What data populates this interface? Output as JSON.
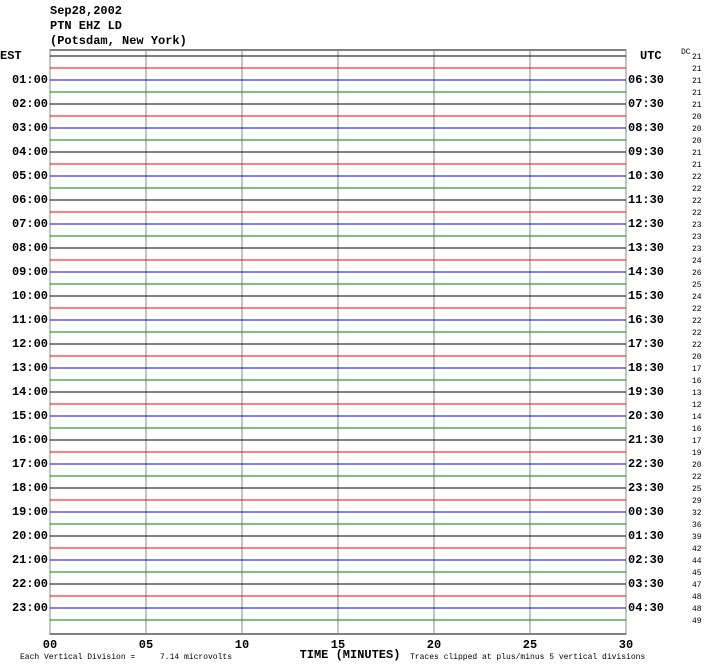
{
  "header": {
    "date": "Sep28,2002",
    "station": "PTN EHZ LD",
    "location": "(Potsdam, New York)"
  },
  "left_axis_label": "EST",
  "right_axis_label": "UTC",
  "dc_label": "DC",
  "trace_colors": [
    "#000000",
    "#ff0000",
    "#0000ff",
    "#008000"
  ],
  "xlim": [
    0,
    30
  ],
  "xticks": [
    {
      "value": 0,
      "label": "00"
    },
    {
      "value": 5,
      "label": "05"
    },
    10,
    15,
    20,
    25,
    30
  ],
  "x_axis_label": "TIME (MINUTES)",
  "footer": {
    "division": "Each Vertical Division =",
    "division_value": "7.14 microvolts",
    "clip_note": "Traces clipped at plus/minus 5 vertical divisions"
  },
  "rows": [
    {
      "est": null,
      "utc": null,
      "dc": 21
    },
    {
      "est": null,
      "utc": null,
      "dc": 21
    },
    {
      "est": "01:00",
      "utc": "06:30",
      "dc": 21
    },
    {
      "est": null,
      "utc": null,
      "dc": 21
    },
    {
      "est": "02:00",
      "utc": "07:30",
      "dc": 21
    },
    {
      "est": null,
      "utc": null,
      "dc": 20
    },
    {
      "est": "03:00",
      "utc": "08:30",
      "dc": 20
    },
    {
      "est": null,
      "utc": null,
      "dc": 20
    },
    {
      "est": "04:00",
      "utc": "09:30",
      "dc": 21
    },
    {
      "est": null,
      "utc": null,
      "dc": 21
    },
    {
      "est": "05:00",
      "utc": "10:30",
      "dc": 22
    },
    {
      "est": null,
      "utc": null,
      "dc": 22
    },
    {
      "est": "06:00",
      "utc": "11:30",
      "dc": 22
    },
    {
      "est": null,
      "utc": null,
      "dc": 22
    },
    {
      "est": "07:00",
      "utc": "12:30",
      "dc": 23
    },
    {
      "est": null,
      "utc": null,
      "dc": 23
    },
    {
      "est": "08:00",
      "utc": "13:30",
      "dc": 23
    },
    {
      "est": null,
      "utc": null,
      "dc": 24
    },
    {
      "est": "09:00",
      "utc": "14:30",
      "dc": 26
    },
    {
      "est": null,
      "utc": null,
      "dc": 25
    },
    {
      "est": "10:00",
      "utc": "15:30",
      "dc": 24
    },
    {
      "est": null,
      "utc": null,
      "dc": 22
    },
    {
      "est": "11:00",
      "utc": "16:30",
      "dc": 22
    },
    {
      "est": null,
      "utc": null,
      "dc": 22
    },
    {
      "est": "12:00",
      "utc": "17:30",
      "dc": 22
    },
    {
      "est": null,
      "utc": null,
      "dc": 20
    },
    {
      "est": "13:00",
      "utc": "18:30",
      "dc": 17
    },
    {
      "est": null,
      "utc": null,
      "dc": 16
    },
    {
      "est": "14:00",
      "utc": "19:30",
      "dc": 13
    },
    {
      "est": null,
      "utc": null,
      "dc": 12
    },
    {
      "est": "15:00",
      "utc": "20:30",
      "dc": 14
    },
    {
      "est": null,
      "utc": null,
      "dc": 16
    },
    {
      "est": "16:00",
      "utc": "21:30",
      "dc": 17
    },
    {
      "est": null,
      "utc": null,
      "dc": 19
    },
    {
      "est": "17:00",
      "utc": "22:30",
      "dc": 20
    },
    {
      "est": null,
      "utc": null,
      "dc": 22
    },
    {
      "est": "18:00",
      "utc": "23:30",
      "dc": 25
    },
    {
      "est": null,
      "utc": null,
      "dc": 29
    },
    {
      "est": "19:00",
      "utc": "00:30",
      "dc": 32
    },
    {
      "est": null,
      "utc": null,
      "dc": 36
    },
    {
      "est": "20:00",
      "utc": "01:30",
      "dc": 39
    },
    {
      "est": null,
      "utc": null,
      "dc": 42
    },
    {
      "est": "21:00",
      "utc": "02:30",
      "dc": 44
    },
    {
      "est": null,
      "utc": null,
      "dc": 45
    },
    {
      "est": "22:00",
      "utc": "03:30",
      "dc": 47
    },
    {
      "est": null,
      "utc": null,
      "dc": 48
    },
    {
      "est": "23:00",
      "utc": "04:30",
      "dc": 48
    },
    {
      "est": null,
      "utc": null,
      "dc": 49
    }
  ]
}
